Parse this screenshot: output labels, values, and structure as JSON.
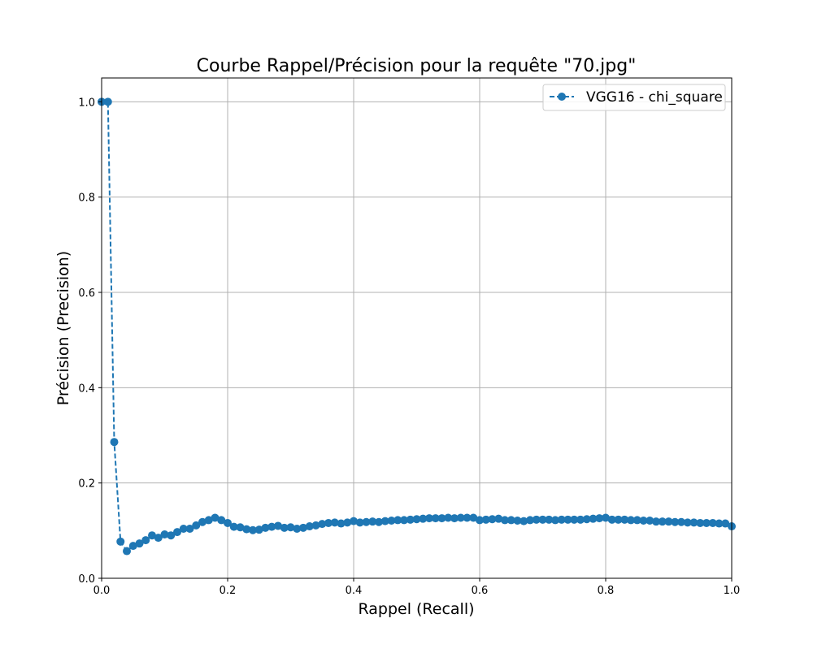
{
  "chart_data": {
    "type": "line",
    "title": "Courbe Rappel/Précision pour la requête \"70.jpg\"",
    "xlabel": "Rappel (Recall)",
    "ylabel": "Précision (Precision)",
    "xlim": [
      0,
      1.0
    ],
    "ylim": [
      0,
      1.05
    ],
    "xticks": [
      0.0,
      0.2,
      0.4,
      0.6,
      0.8,
      1.0
    ],
    "xtick_labels": [
      "0.0",
      "0.2",
      "0.4",
      "0.6",
      "0.8",
      "1.0"
    ],
    "yticks": [
      0.0,
      0.2,
      0.4,
      0.6,
      0.8,
      1.0
    ],
    "ytick_labels": [
      "0.0",
      "0.2",
      "0.4",
      "0.6",
      "0.8",
      "1.0"
    ],
    "grid": true,
    "legend_position": "top-right",
    "series": [
      {
        "name": "VGG16 - chi_square",
        "color": "#1f77b4",
        "line_style": "dashed",
        "marker": "circle",
        "x": [
          0.0,
          0.01,
          0.02,
          0.03,
          0.04,
          0.05,
          0.06,
          0.07,
          0.08,
          0.09,
          0.1,
          0.11,
          0.12,
          0.13,
          0.14,
          0.15,
          0.16,
          0.17,
          0.18,
          0.19,
          0.2,
          0.21,
          0.22,
          0.23,
          0.24,
          0.25,
          0.26,
          0.27,
          0.28,
          0.29,
          0.3,
          0.31,
          0.32,
          0.33,
          0.34,
          0.35,
          0.36,
          0.37,
          0.38,
          0.39,
          0.4,
          0.41,
          0.42,
          0.43,
          0.44,
          0.45,
          0.46,
          0.47,
          0.48,
          0.49,
          0.5,
          0.51,
          0.52,
          0.53,
          0.54,
          0.55,
          0.56,
          0.57,
          0.58,
          0.59,
          0.6,
          0.61,
          0.62,
          0.63,
          0.64,
          0.65,
          0.66,
          0.67,
          0.68,
          0.69,
          0.7,
          0.71,
          0.72,
          0.73,
          0.74,
          0.75,
          0.76,
          0.77,
          0.78,
          0.79,
          0.8,
          0.81,
          0.82,
          0.83,
          0.84,
          0.85,
          0.86,
          0.87,
          0.88,
          0.89,
          0.9,
          0.91,
          0.92,
          0.93,
          0.94,
          0.95,
          0.96,
          0.97,
          0.98,
          0.99,
          1.0
        ],
        "y": [
          1.0,
          1.0,
          0.286,
          0.077,
          0.057,
          0.068,
          0.073,
          0.08,
          0.09,
          0.085,
          0.092,
          0.09,
          0.097,
          0.104,
          0.104,
          0.111,
          0.118,
          0.122,
          0.127,
          0.122,
          0.116,
          0.108,
          0.107,
          0.103,
          0.101,
          0.102,
          0.106,
          0.108,
          0.11,
          0.106,
          0.107,
          0.104,
          0.106,
          0.109,
          0.111,
          0.114,
          0.116,
          0.117,
          0.115,
          0.117,
          0.12,
          0.117,
          0.118,
          0.119,
          0.118,
          0.12,
          0.121,
          0.122,
          0.122,
          0.123,
          0.124,
          0.125,
          0.126,
          0.126,
          0.126,
          0.127,
          0.126,
          0.127,
          0.127,
          0.127,
          0.122,
          0.123,
          0.124,
          0.125,
          0.122,
          0.122,
          0.121,
          0.12,
          0.122,
          0.123,
          0.123,
          0.123,
          0.122,
          0.123,
          0.123,
          0.123,
          0.123,
          0.124,
          0.125,
          0.126,
          0.127,
          0.123,
          0.123,
          0.123,
          0.122,
          0.122,
          0.121,
          0.121,
          0.119,
          0.119,
          0.119,
          0.118,
          0.118,
          0.117,
          0.117,
          0.116,
          0.116,
          0.116,
          0.115,
          0.115,
          0.109
        ]
      }
    ]
  }
}
